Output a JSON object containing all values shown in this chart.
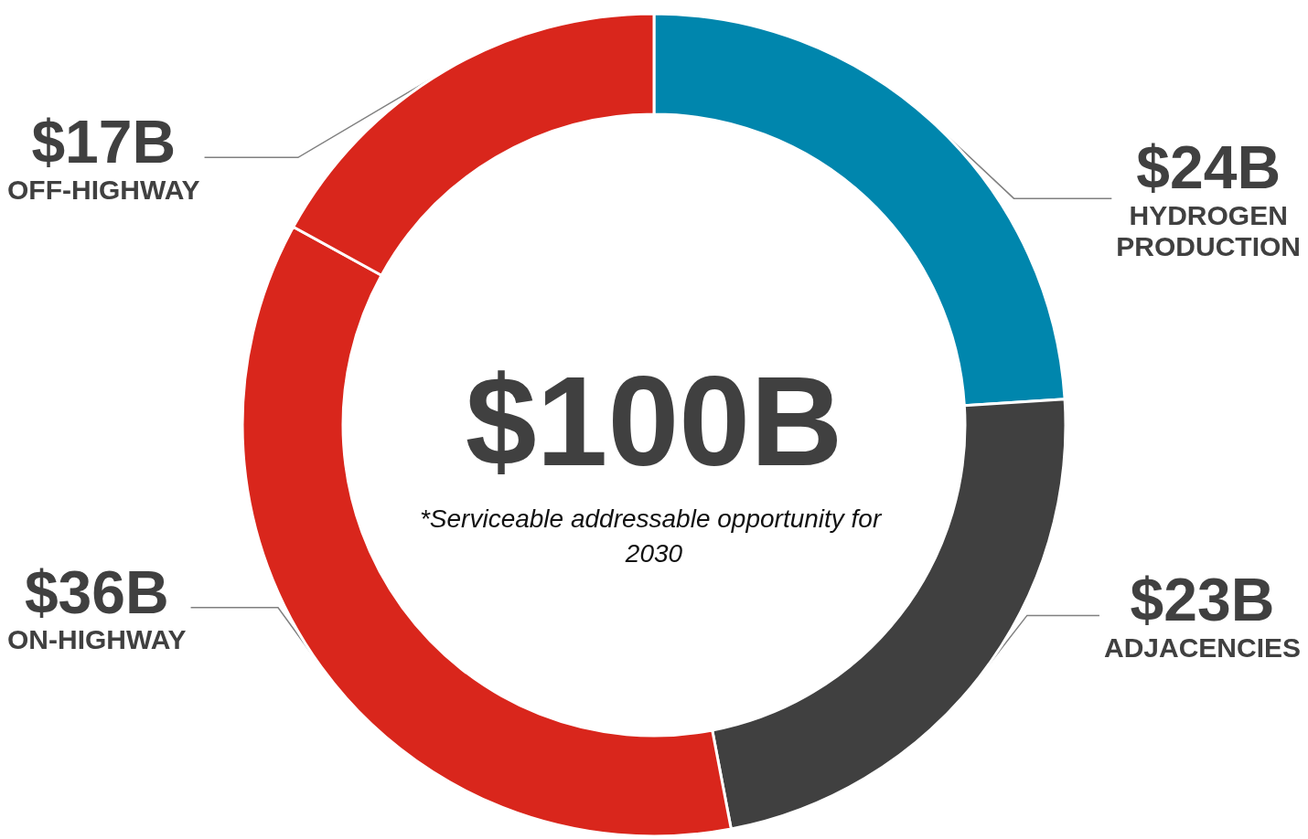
{
  "chart_data": {
    "type": "donut",
    "title": "$100B",
    "subtitle": "*Serviceable addressable opportunity for 2030",
    "categories": [
      "HYDROGEN PRODUCTION",
      "ADJACENCIES",
      "ON-HIGHWAY",
      "OFF-HIGHWAY"
    ],
    "values": [
      24,
      23,
      36,
      17
    ],
    "value_labels": [
      "$24B",
      "$23B",
      "$36B",
      "$17B"
    ],
    "colors": [
      "#0086ad",
      "#404040",
      "#d9261c",
      "#d9261c"
    ],
    "legend": false
  }
}
